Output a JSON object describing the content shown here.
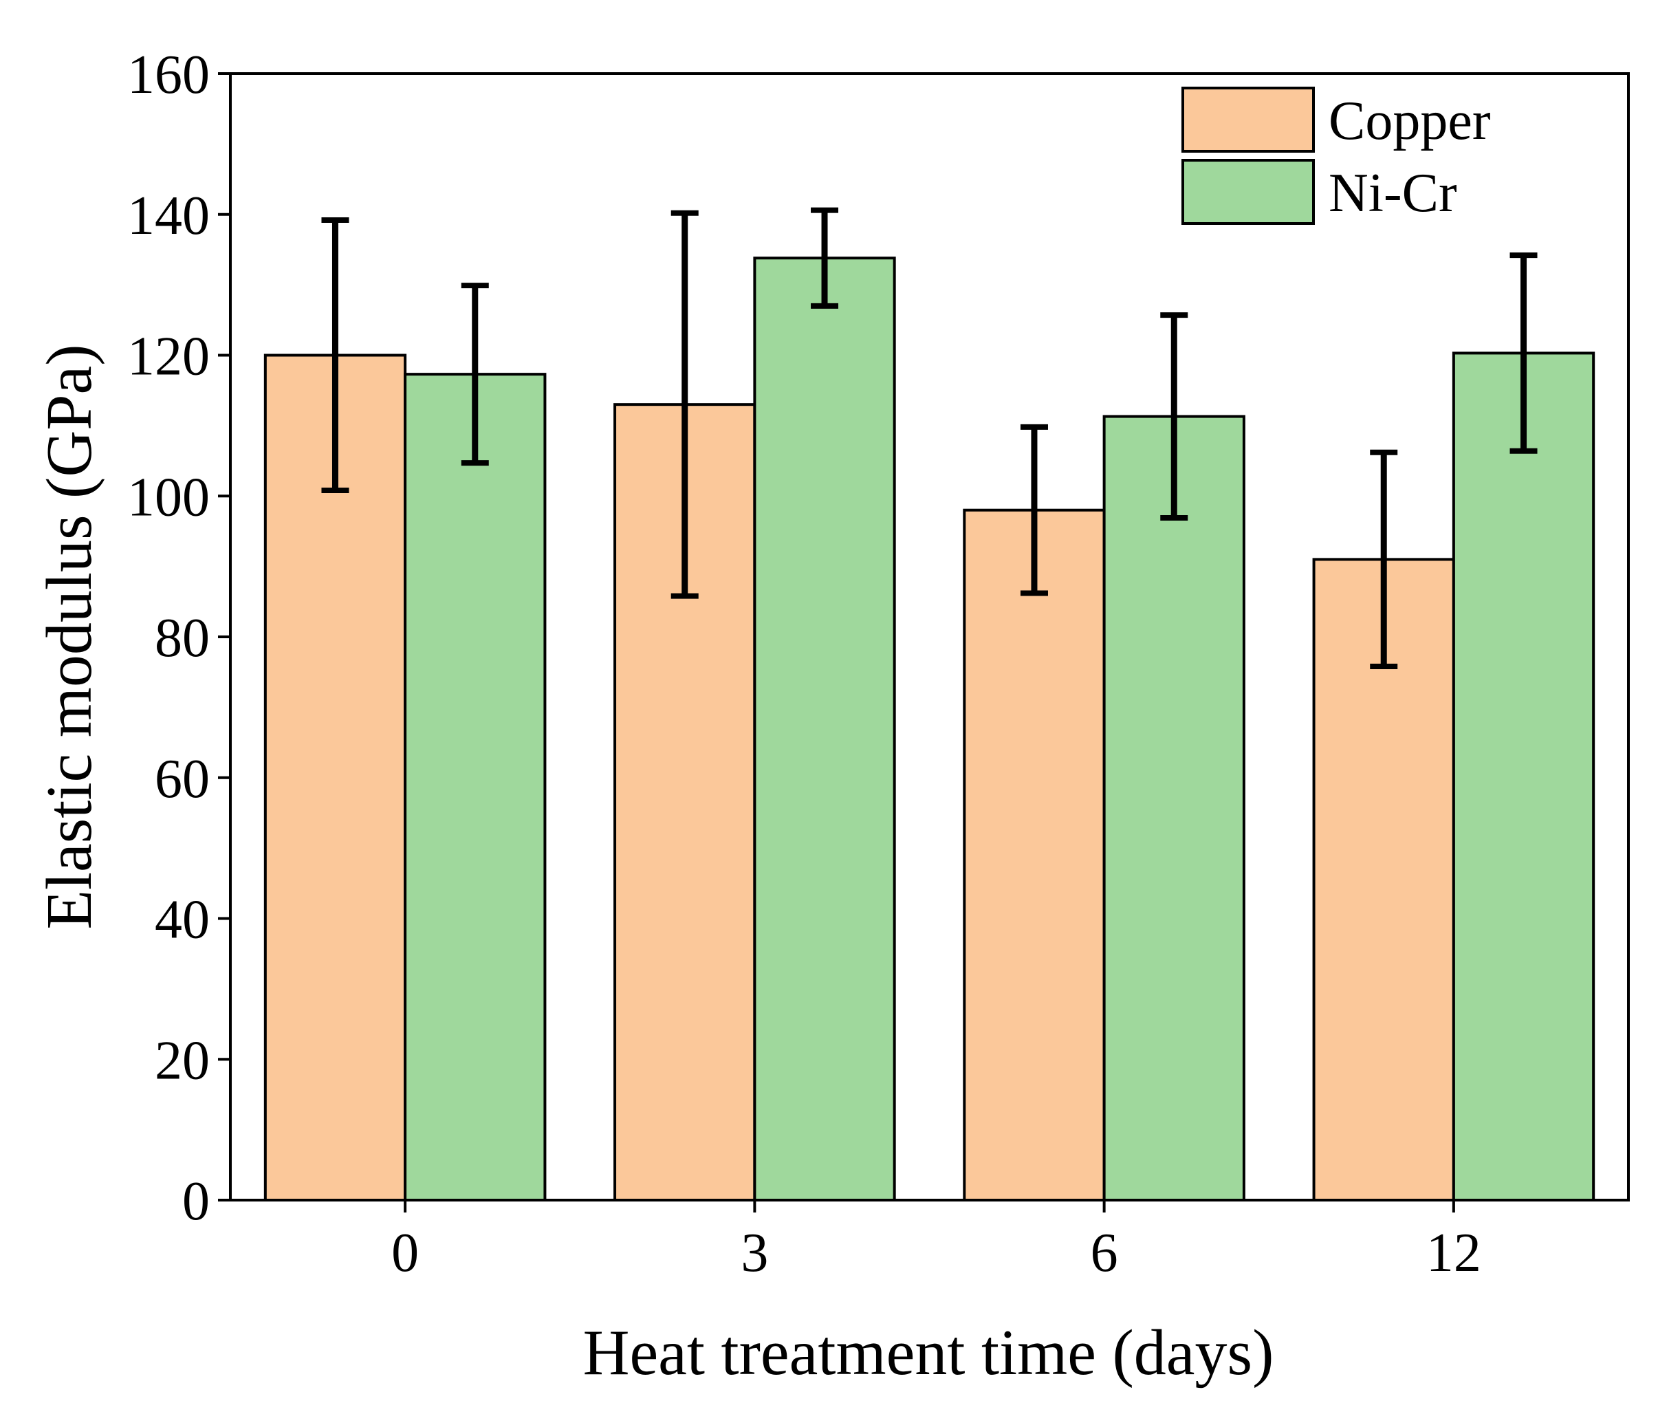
{
  "chart_data": {
    "type": "bar",
    "title": "",
    "xlabel": "Heat treatment time (days)",
    "ylabel": "Elastic modulus (GPa)",
    "categories": [
      "0",
      "3",
      "6",
      "12"
    ],
    "ylim": [
      0,
      160
    ],
    "yticks": [
      "0",
      "20",
      "40",
      "60",
      "80",
      "100",
      "120",
      "140",
      "160"
    ],
    "grid": false,
    "legend_position": "top-right",
    "series": [
      {
        "name": "Copper",
        "color": "#fbc89a",
        "values": [
          120,
          113,
          98,
          91
        ],
        "errors": [
          19.2,
          27.2,
          11.8,
          15.2
        ]
      },
      {
        "name": "Ni-Cr",
        "color": "#9fd89c",
        "values": [
          117.3,
          133.8,
          111.3,
          120.3
        ],
        "errors": [
          12.6,
          6.8,
          14.4,
          13.9
        ]
      }
    ]
  }
}
